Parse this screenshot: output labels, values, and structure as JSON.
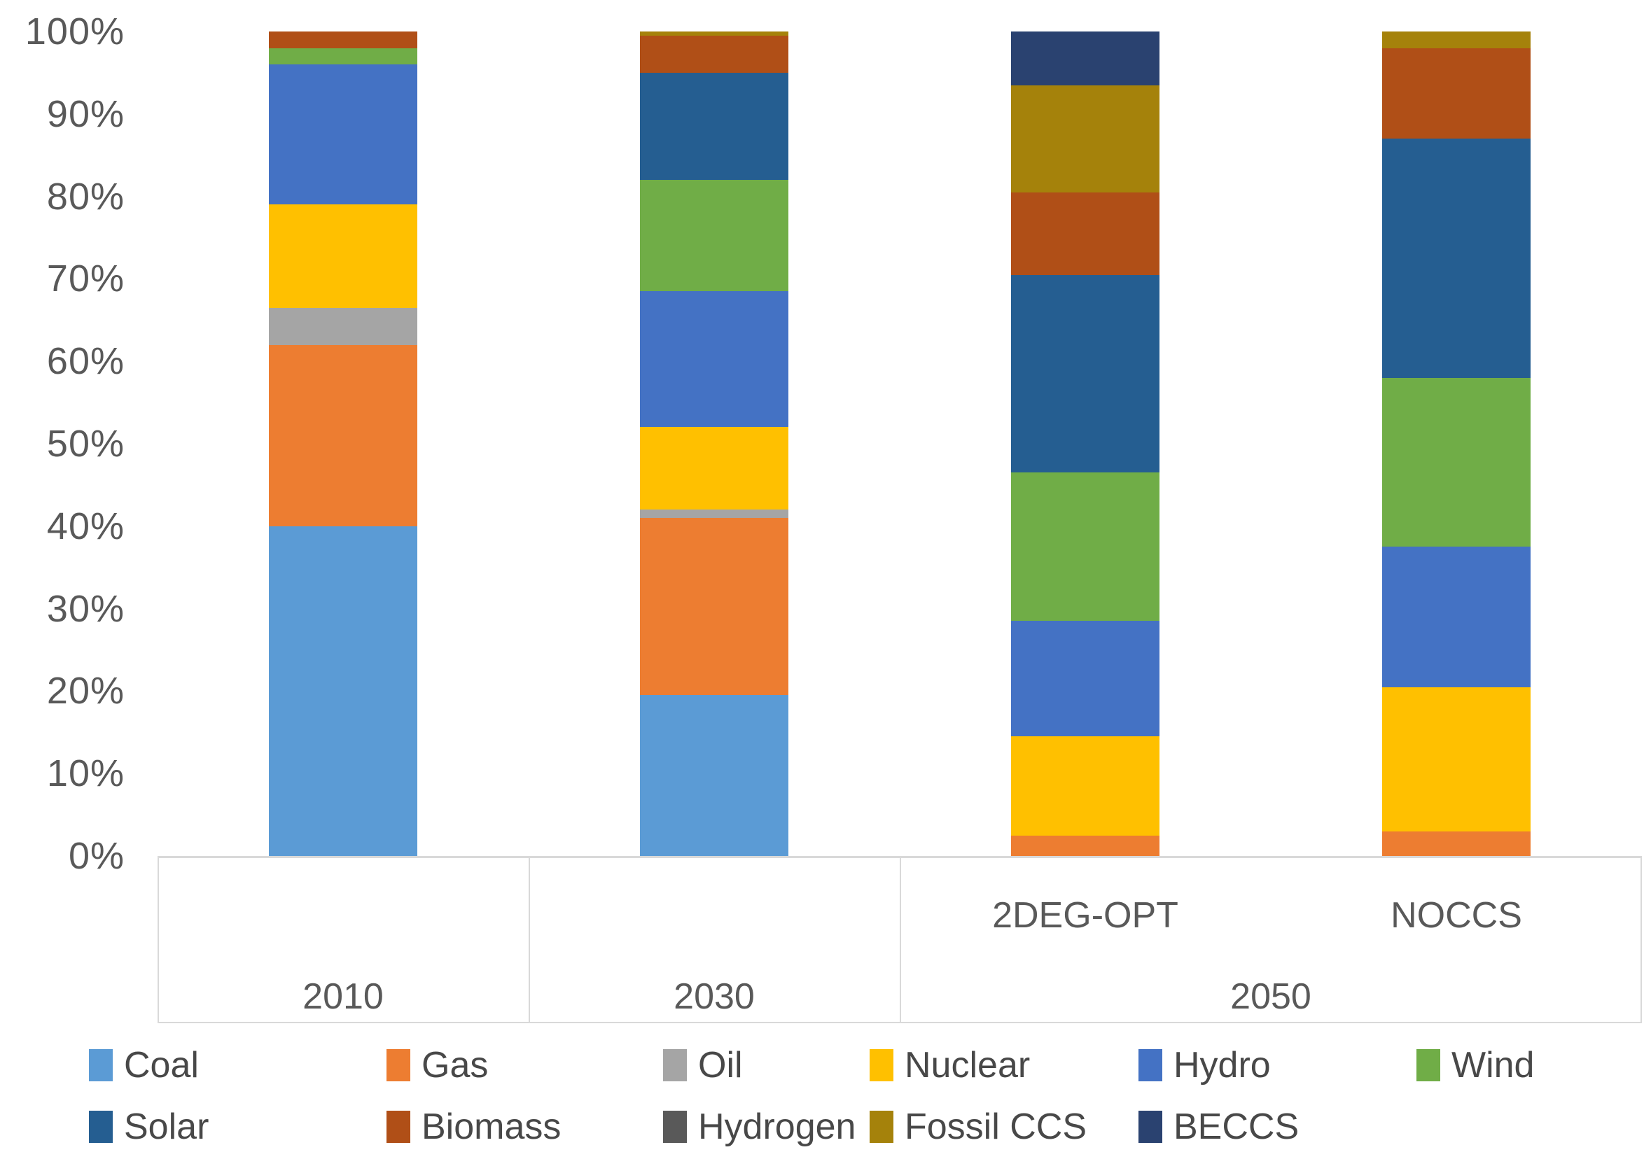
{
  "chart_data": {
    "type": "bar",
    "stacked": true,
    "title": "",
    "xlabel": "",
    "ylabel": "",
    "unit": "%",
    "ylim": [
      0,
      100
    ],
    "grid": false,
    "legend_position": "bottom",
    "yticks": [
      "0%",
      "10%",
      "20%",
      "30%",
      "40%",
      "50%",
      "60%",
      "70%",
      "80%",
      "90%",
      "100%"
    ],
    "categories": [
      {
        "year": "2010",
        "scenario": ""
      },
      {
        "year": "2030",
        "scenario": ""
      },
      {
        "year": "2050",
        "scenario": "2DEG-OPT"
      },
      {
        "year": "2050",
        "scenario": "NOCCS"
      }
    ],
    "year_groups": [
      {
        "label": "2010",
        "span": 1
      },
      {
        "label": "2030",
        "span": 1
      },
      {
        "label": "2050",
        "span": 2
      }
    ],
    "series": [
      {
        "name": "Coal",
        "color": "#5B9BD5",
        "values": [
          40,
          19.5,
          0,
          0
        ]
      },
      {
        "name": "Gas",
        "color": "#ED7D31",
        "values": [
          22,
          21.5,
          2.5,
          3
        ]
      },
      {
        "name": "Oil",
        "color": "#A5A5A5",
        "values": [
          4.5,
          1,
          0,
          0
        ]
      },
      {
        "name": "Nuclear",
        "color": "#FFC000",
        "values": [
          12.5,
          10,
          12,
          17.5
        ]
      },
      {
        "name": "Hydro",
        "color": "#4472C4",
        "values": [
          17,
          16.5,
          14,
          17
        ]
      },
      {
        "name": "Wind",
        "color": "#70AD47",
        "values": [
          2,
          13.5,
          18,
          20.5
        ]
      },
      {
        "name": "Solar",
        "color": "#255E91",
        "values": [
          0,
          13,
          24,
          29
        ]
      },
      {
        "name": "Biomass",
        "color": "#B04F17",
        "values": [
          2,
          4.5,
          10,
          11
        ]
      },
      {
        "name": "Hydrogen",
        "color": "#595959",
        "values": [
          0,
          0,
          0,
          0
        ]
      },
      {
        "name": "Fossil CCS",
        "color": "#A5820B",
        "values": [
          0,
          0.5,
          13,
          2
        ]
      },
      {
        "name": "BECCS",
        "color": "#2A4270",
        "values": [
          0,
          0,
          6.5,
          0
        ]
      }
    ],
    "legend_rows": [
      [
        "Coal",
        "Gas",
        "Oil",
        "Nuclear",
        "Hydro",
        "Wind"
      ],
      [
        "Solar",
        "Biomass",
        "Hydrogen",
        "Fossil CCS",
        "BECCS"
      ]
    ]
  },
  "colors": {
    "background": "#FFFFFF",
    "tick_text": "#595959",
    "axis_line": "#D9D9D9",
    "legend_text": "#484848"
  }
}
